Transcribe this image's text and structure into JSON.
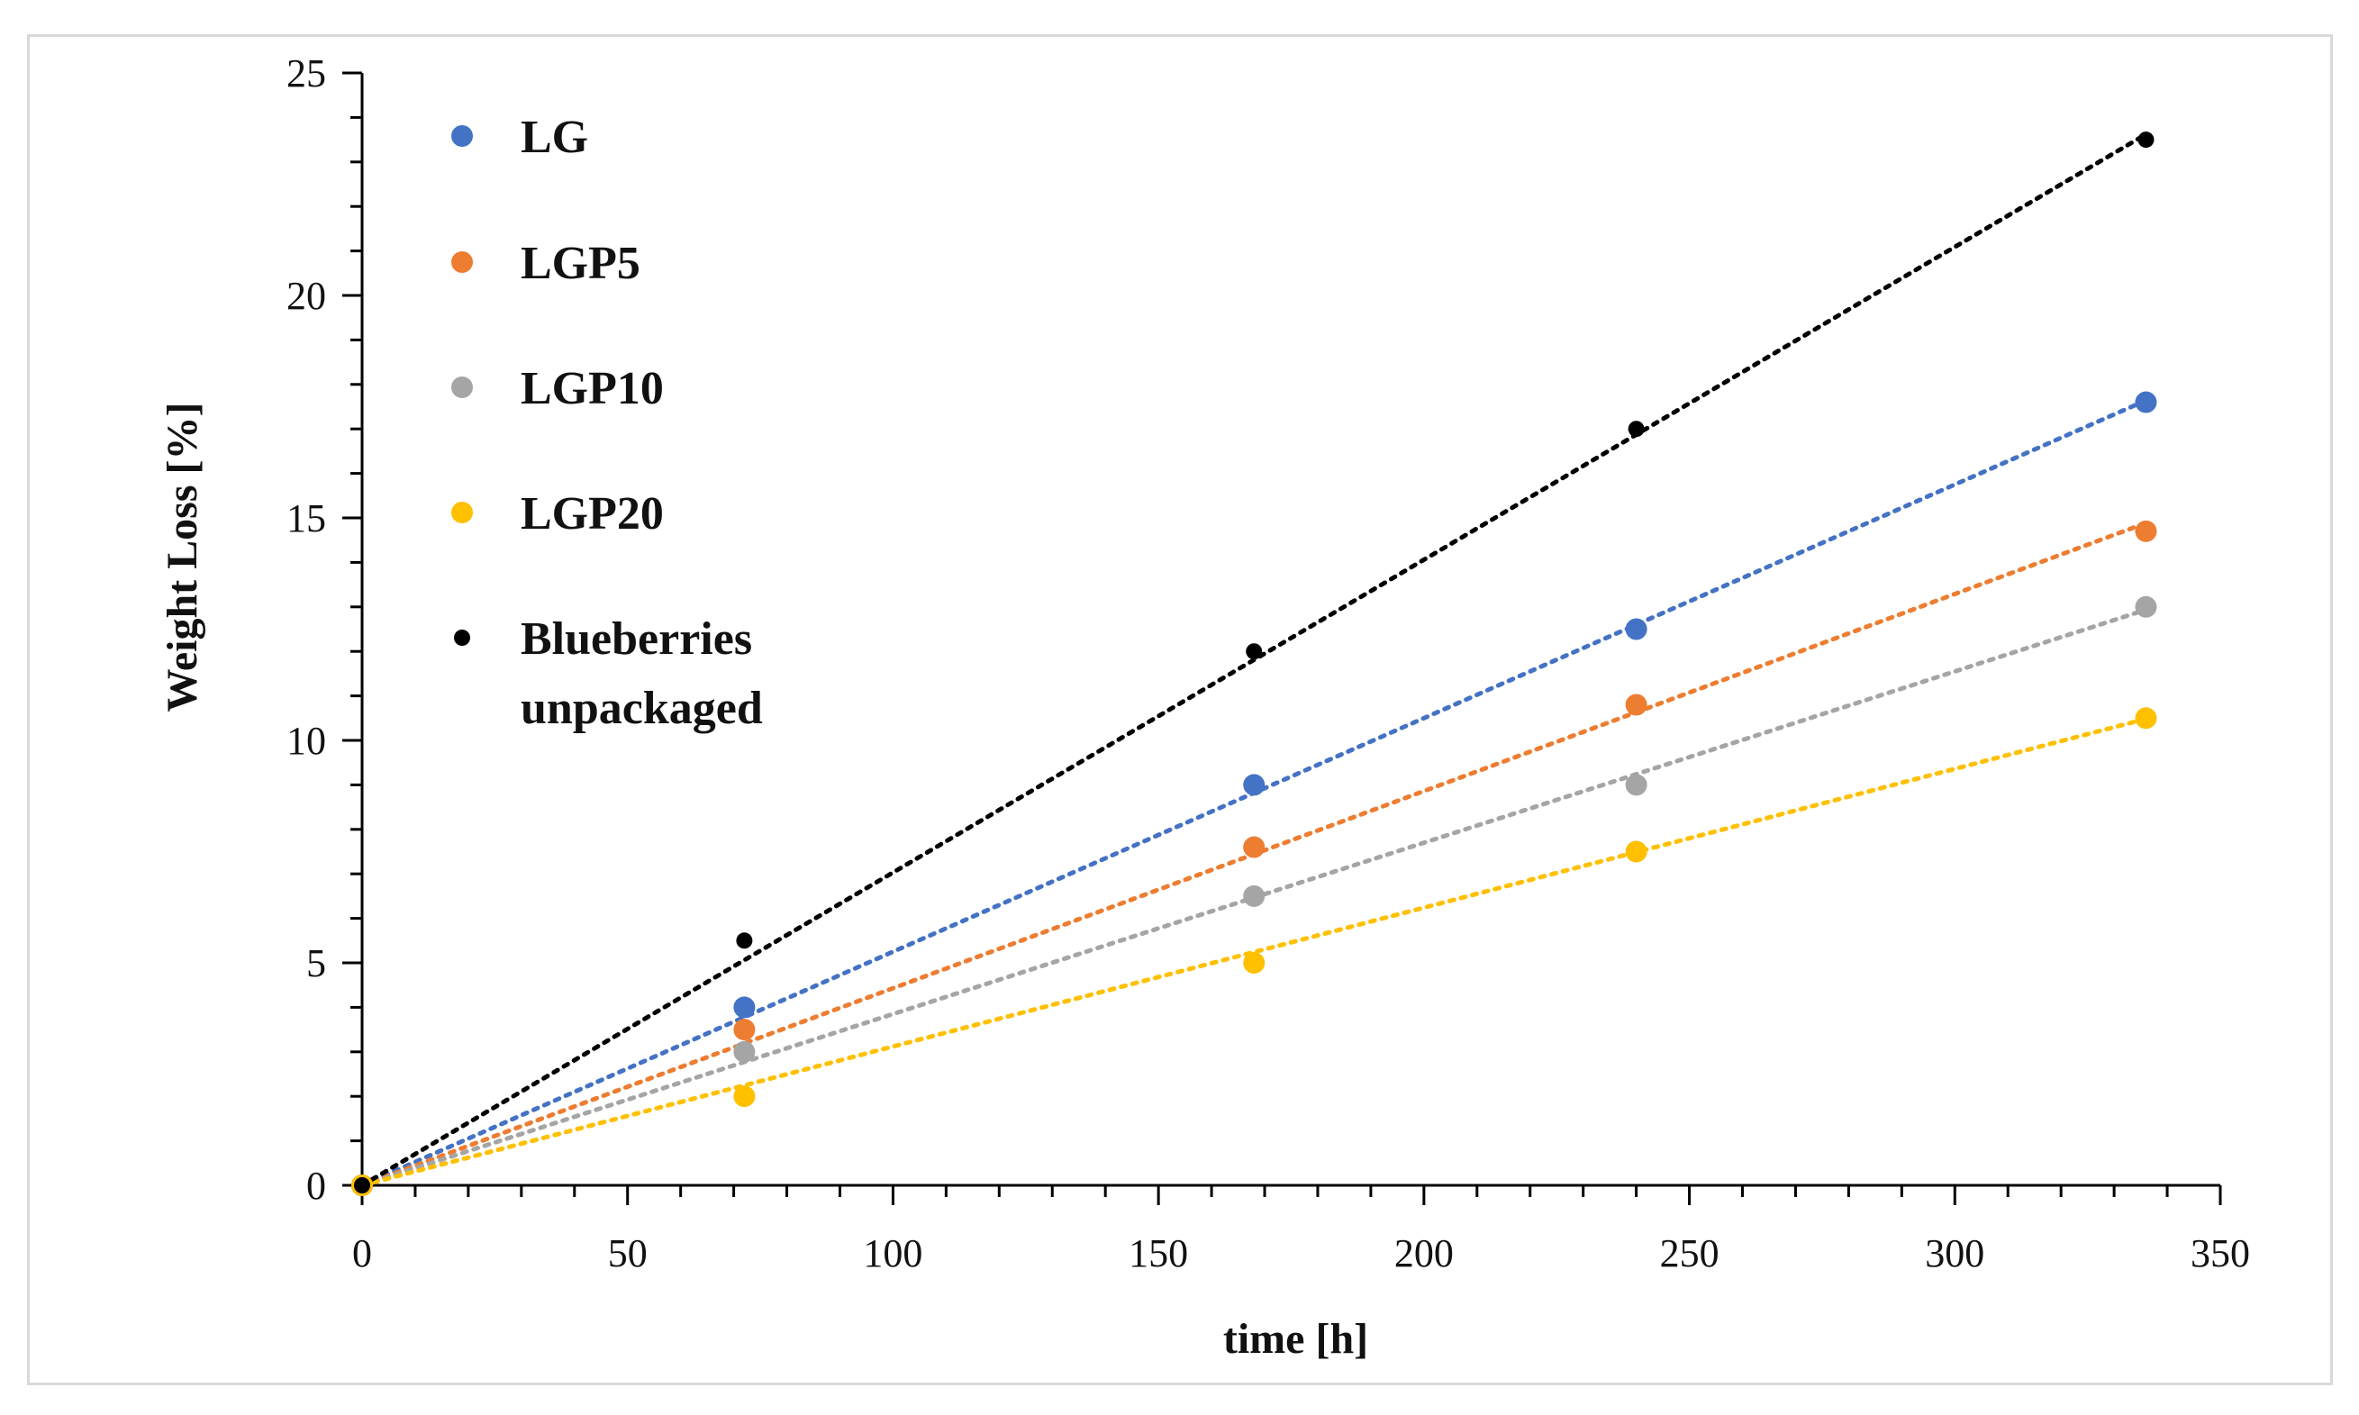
{
  "chart_data": {
    "type": "scatter",
    "title": "",
    "xlabel": "time [h]",
    "ylabel": "Weight Loss [%]",
    "xlim": [
      0,
      350
    ],
    "ylim": [
      0,
      25
    ],
    "x_ticks": [
      0,
      50,
      100,
      150,
      200,
      250,
      300,
      350
    ],
    "y_ticks": [
      0,
      5,
      10,
      15,
      20,
      25
    ],
    "x_tick_labels": [
      "0",
      "50",
      "100",
      "150",
      "200",
      "250",
      "300",
      "350"
    ],
    "y_tick_labels": [
      "0",
      "5",
      "10",
      "15",
      "20",
      "25"
    ],
    "grid": false,
    "legend_position": "top-left",
    "trendline": "linear through origin (dotted)",
    "series": [
      {
        "name": "LG",
        "color": "#4472c4",
        "x": [
          0,
          72,
          168,
          240,
          336
        ],
        "values": [
          0,
          4.0,
          9.0,
          12.5,
          17.6
        ],
        "slope": 0.0525
      },
      {
        "name": "LGP5",
        "color": "#ed7d31",
        "x": [
          0,
          72,
          168,
          240,
          336
        ],
        "values": [
          0,
          3.5,
          7.6,
          10.8,
          14.7
        ],
        "slope": 0.0443
      },
      {
        "name": "LGP10",
        "color": "#a5a5a5",
        "x": [
          0,
          72,
          168,
          240,
          336
        ],
        "values": [
          0,
          3.0,
          6.5,
          9.0,
          13.0
        ],
        "slope": 0.0385
      },
      {
        "name": "LGP20",
        "color": "#ffc000",
        "x": [
          0,
          72,
          168,
          240,
          336
        ],
        "values": [
          0,
          2.0,
          5.0,
          7.5,
          10.5
        ],
        "slope": 0.0312
      },
      {
        "name": "Blueberries unpackaged",
        "legend_lines": [
          "Blueberries",
          "unpackaged"
        ],
        "color": "#000000",
        "x": [
          0,
          72,
          168,
          240,
          336
        ],
        "values": [
          0,
          5.5,
          12.0,
          17.0,
          23.5
        ],
        "slope": 0.0703
      }
    ]
  }
}
